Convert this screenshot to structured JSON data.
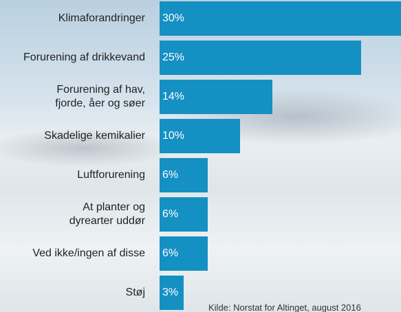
{
  "chart_data": {
    "type": "bar",
    "orientation": "horizontal",
    "categories": [
      "Klimaforandringer",
      "Forurening af drikkevand",
      "Forurening af hav,\nfjorde, åer og søer",
      "Skadelige kemikalier",
      "Luftforurening",
      "At planter og\ndyrearter uddør",
      "Ved ikke/ingen af disse",
      "Støj"
    ],
    "values": [
      30,
      25,
      14,
      10,
      6,
      6,
      6,
      3
    ],
    "value_labels": [
      "30%",
      "25%",
      "14%",
      "10%",
      "6%",
      "6%",
      "6%",
      "3%"
    ],
    "color": "#1590c2",
    "source": "Kilde: Norstat for Altinget, august 2016"
  }
}
